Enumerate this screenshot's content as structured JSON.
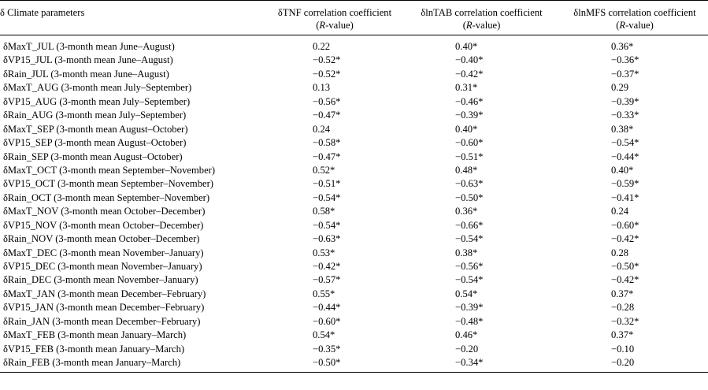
{
  "table": {
    "headers": {
      "param": "δ Climate parameters",
      "tnf_line1": "δTNF correlation coefficient",
      "tab_line1": "δlnTAB correlation coefficient",
      "mfs_line1": "δlnMFS correlation coefficient",
      "r_open": "(",
      "r_italic": "R",
      "r_close": "-value)"
    },
    "rows": [
      {
        "param": "δMaxT_JUL (3-month mean June–August)",
        "tnf": "0.22",
        "tab": "0.40*",
        "mfs": "0.36*"
      },
      {
        "param": "δVP15_JUL (3-month mean June–August)",
        "tnf": "−0.52*",
        "tab": "−0.40*",
        "mfs": "−0.36*"
      },
      {
        "param": "δRain_JUL (3-month mean June–August)",
        "tnf": "−0.52*",
        "tab": "−0.42*",
        "mfs": "−0.37*"
      },
      {
        "param": "δMaxT_AUG (3-month mean July–September)",
        "tnf": "0.13",
        "tab": "0.31*",
        "mfs": "0.29"
      },
      {
        "param": "δVP15_AUG (3-month mean July–September)",
        "tnf": "−0.56*",
        "tab": "−0.46*",
        "mfs": "−0.39*"
      },
      {
        "param": "δRain_AUG (3-month mean July–September)",
        "tnf": "−0.47*",
        "tab": "−0.39*",
        "mfs": "−0.33*"
      },
      {
        "param": "δMaxT_SEP (3-month mean August–October)",
        "tnf": "0.24",
        "tab": "0.40*",
        "mfs": "0.38*"
      },
      {
        "param": "δVP15_SEP (3-month mean August–October)",
        "tnf": "−0.58*",
        "tab": "−0.60*",
        "mfs": "−0.54*"
      },
      {
        "param": "δRain_SEP (3-month mean August–October)",
        "tnf": "−0.47*",
        "tab": "−0.51*",
        "mfs": "−0.44*"
      },
      {
        "param": "δMaxT_OCT (3-month mean September–November)",
        "tnf": "0.52*",
        "tab": "0.48*",
        "mfs": "0.40*"
      },
      {
        "param": "δVP15_OCT (3-month mean September–November)",
        "tnf": "−0.51*",
        "tab": "−0.63*",
        "mfs": "−0.59*"
      },
      {
        "param": "δRain_OCT (3-month mean September–November)",
        "tnf": "−0.54*",
        "tab": "−0.50*",
        "mfs": "−0.41*"
      },
      {
        "param": "δMaxT_NOV (3-month mean October–December)",
        "tnf": "0.58*",
        "tab": "0.36*",
        "mfs": "0.24"
      },
      {
        "param": "δVP15_NOV (3-month mean October–December)",
        "tnf": "−0.54*",
        "tab": "−0.66*",
        "mfs": "−0.60*"
      },
      {
        "param": "δRain_NOV (3-month mean October–December)",
        "tnf": "−0.63*",
        "tab": "−0.54*",
        "mfs": "−0.42*"
      },
      {
        "param": "δMaxT_DEC (3-month mean November–January)",
        "tnf": "0.53*",
        "tab": "0.38*",
        "mfs": "0.28"
      },
      {
        "param": "δVP15_DEC (3-month mean November–January)",
        "tnf": "−0.42*",
        "tab": "−0.56*",
        "mfs": "−0.50*"
      },
      {
        "param": "δRain_DEC (3-month mean November–January)",
        "tnf": "−0.57*",
        "tab": "−0.54*",
        "mfs": "−0.42*"
      },
      {
        "param": "δMaxT_JAN (3-month mean December–February)",
        "tnf": "0.55*",
        "tab": "0.54*",
        "mfs": "0.37*"
      },
      {
        "param": "δVP15_JAN (3-month mean December–February)",
        "tnf": "−0.44*",
        "tab": "−0.39*",
        "mfs": "−0.28"
      },
      {
        "param": "δRain_JAN (3-month mean December–February)",
        "tnf": "−0.60*",
        "tab": "−0.48*",
        "mfs": "−0.32*"
      },
      {
        "param": "δMaxT_FEB (3-month mean January–March)",
        "tnf": "0.54*",
        "tab": "0.46*",
        "mfs": "0.37*"
      },
      {
        "param": "δVP15_FEB (3-month mean January–March)",
        "tnf": "−0.35*",
        "tab": "−0.20",
        "mfs": "−0.10"
      },
      {
        "param": "δRain_FEB (3-month mean January–March)",
        "tnf": "−0.50*",
        "tab": "−0.34*",
        "mfs": "−0.20"
      }
    ]
  }
}
